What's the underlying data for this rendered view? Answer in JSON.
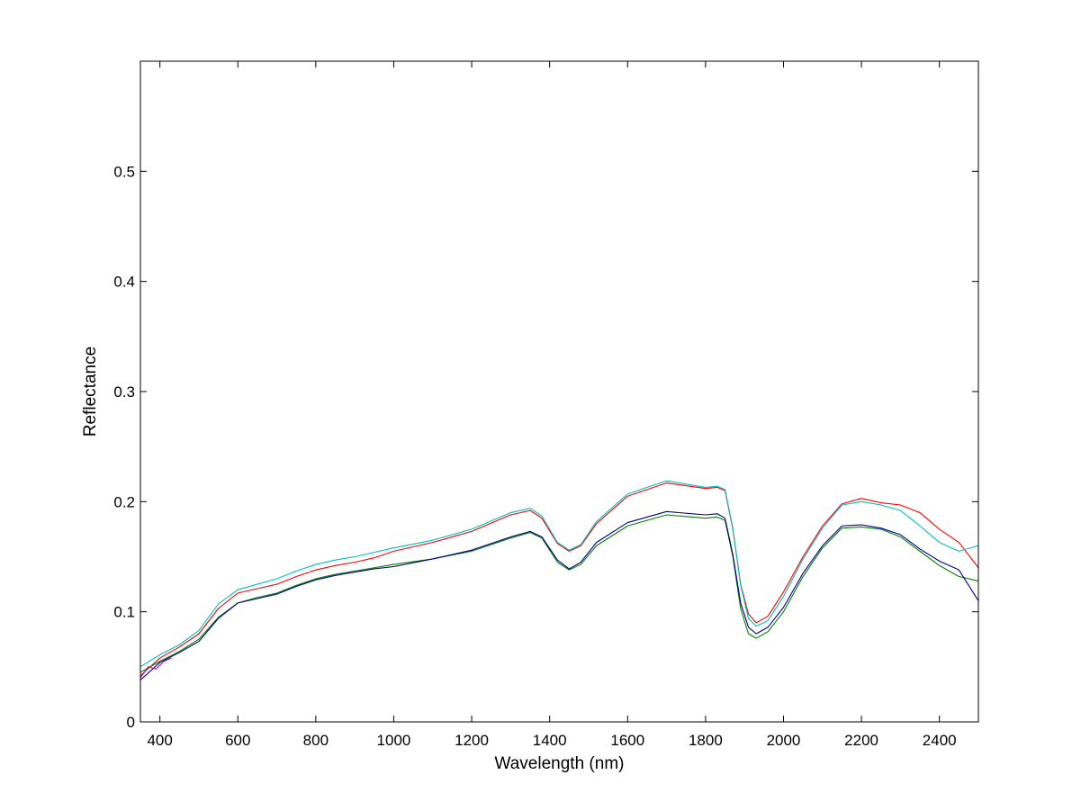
{
  "chart_data": {
    "type": "line",
    "title": "",
    "xlabel": "Wavelength (nm)",
    "ylabel": "Reflectance",
    "xlim": [
      350,
      2500
    ],
    "ylim": [
      0,
      0.6
    ],
    "x_ticks": [
      400,
      600,
      800,
      1000,
      1200,
      1400,
      1600,
      1800,
      2000,
      2200,
      2400
    ],
    "x_tick_labels": [
      "400",
      "600",
      "800",
      "1000",
      "1200",
      "1400",
      "1600",
      "1800",
      "2000",
      "2200",
      "2400"
    ],
    "y_ticks": [
      0,
      0.1,
      0.2,
      0.3,
      0.4,
      0.5
    ],
    "y_tick_labels": [
      "0",
      "0.1",
      "0.2",
      "0.3",
      "0.4",
      "0.5"
    ],
    "grid": false,
    "legend": "none",
    "series": [
      {
        "color": "#ff0000",
        "x": [
          350,
          400,
          450,
          500,
          550,
          600,
          650,
          700,
          750,
          800,
          850,
          900,
          950,
          1000,
          1100,
          1200,
          1300,
          1350,
          1380,
          1420,
          1450,
          1480,
          1520,
          1600,
          1700,
          1800,
          1830,
          1850,
          1870,
          1890,
          1910,
          1930,
          1960,
          2000,
          2050,
          2100,
          2150,
          2200,
          2250,
          2300,
          2350,
          2400,
          2450,
          2500
        ],
        "y": [
          0.042,
          0.058,
          0.068,
          0.08,
          0.103,
          0.117,
          0.121,
          0.125,
          0.132,
          0.138,
          0.142,
          0.145,
          0.149,
          0.155,
          0.163,
          0.173,
          0.188,
          0.192,
          0.185,
          0.162,
          0.155,
          0.16,
          0.18,
          0.205,
          0.217,
          0.212,
          0.213,
          0.21,
          0.175,
          0.125,
          0.098,
          0.09,
          0.096,
          0.118,
          0.15,
          0.178,
          0.198,
          0.203,
          0.199,
          0.197,
          0.19,
          0.175,
          0.163,
          0.14
        ]
      },
      {
        "color": "#00bfbf",
        "x": [
          350,
          400,
          450,
          500,
          550,
          600,
          650,
          700,
          750,
          800,
          850,
          900,
          950,
          1000,
          1100,
          1200,
          1300,
          1350,
          1380,
          1420,
          1450,
          1480,
          1520,
          1600,
          1700,
          1800,
          1830,
          1850,
          1870,
          1890,
          1910,
          1930,
          1960,
          2000,
          2050,
          2100,
          2150,
          2200,
          2250,
          2300,
          2350,
          2400,
          2450,
          2500
        ],
        "y": [
          0.05,
          0.061,
          0.07,
          0.083,
          0.107,
          0.12,
          0.125,
          0.13,
          0.137,
          0.143,
          0.147,
          0.15,
          0.154,
          0.158,
          0.165,
          0.175,
          0.19,
          0.194,
          0.187,
          0.163,
          0.156,
          0.161,
          0.182,
          0.207,
          0.219,
          0.213,
          0.214,
          0.211,
          0.176,
          0.124,
          0.094,
          0.087,
          0.092,
          0.114,
          0.148,
          0.176,
          0.197,
          0.2,
          0.197,
          0.192,
          0.178,
          0.163,
          0.155,
          0.16
        ]
      },
      {
        "color": "#008000",
        "x": [
          350,
          400,
          450,
          500,
          550,
          600,
          650,
          700,
          750,
          800,
          850,
          900,
          950,
          1000,
          1100,
          1200,
          1300,
          1350,
          1380,
          1420,
          1450,
          1480,
          1520,
          1600,
          1700,
          1800,
          1830,
          1850,
          1870,
          1890,
          1910,
          1930,
          1960,
          2000,
          2050,
          2100,
          2150,
          2200,
          2250,
          2300,
          2350,
          2400,
          2450,
          2500
        ],
        "y": [
          0.045,
          0.055,
          0.064,
          0.075,
          0.095,
          0.108,
          0.113,
          0.117,
          0.124,
          0.13,
          0.134,
          0.137,
          0.14,
          0.143,
          0.148,
          0.155,
          0.167,
          0.172,
          0.167,
          0.145,
          0.138,
          0.143,
          0.16,
          0.178,
          0.188,
          0.185,
          0.186,
          0.183,
          0.15,
          0.103,
          0.08,
          0.076,
          0.082,
          0.1,
          0.132,
          0.158,
          0.176,
          0.177,
          0.175,
          0.168,
          0.155,
          0.142,
          0.132,
          0.128
        ]
      },
      {
        "color": "#00008b",
        "x": [
          350,
          400,
          450,
          500,
          550,
          600,
          650,
          700,
          750,
          800,
          850,
          900,
          950,
          1000,
          1100,
          1200,
          1300,
          1350,
          1380,
          1420,
          1450,
          1480,
          1520,
          1600,
          1700,
          1800,
          1830,
          1850,
          1870,
          1890,
          1910,
          1930,
          1960,
          2000,
          2050,
          2100,
          2150,
          2200,
          2250,
          2300,
          2350,
          2400,
          2450,
          2500
        ],
        "y": [
          0.038,
          0.054,
          0.063,
          0.073,
          0.094,
          0.108,
          0.112,
          0.116,
          0.123,
          0.129,
          0.133,
          0.136,
          0.139,
          0.141,
          0.148,
          0.156,
          0.168,
          0.173,
          0.168,
          0.147,
          0.139,
          0.145,
          0.163,
          0.181,
          0.191,
          0.188,
          0.189,
          0.185,
          0.152,
          0.108,
          0.086,
          0.08,
          0.086,
          0.104,
          0.135,
          0.16,
          0.178,
          0.179,
          0.176,
          0.17,
          0.157,
          0.146,
          0.138,
          0.11
        ]
      },
      {
        "color": "#bf00bf",
        "x": [
          350,
          370,
          390,
          410,
          430
        ],
        "y": [
          0.04,
          0.05,
          0.048,
          0.055,
          0.058
        ]
      }
    ]
  }
}
